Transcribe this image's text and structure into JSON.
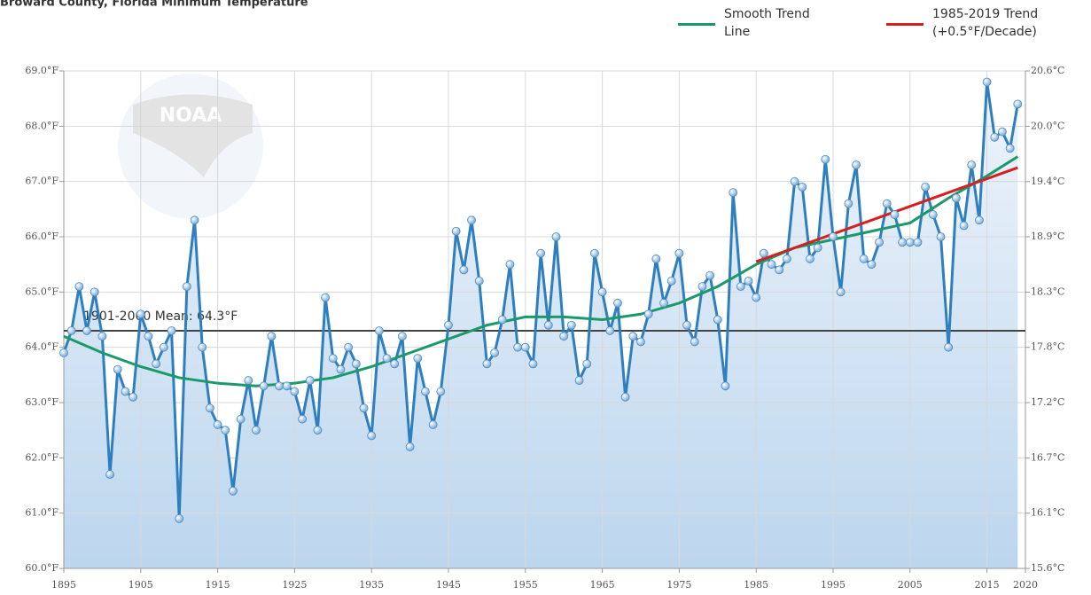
{
  "chart_data": {
    "type": "line",
    "title": "Broward County, Florida Minimum Temperature",
    "logo_text": "NOAA",
    "xlim": [
      1895,
      2020
    ],
    "xticks": [
      1895,
      1905,
      1915,
      1925,
      1935,
      1945,
      1955,
      1965,
      1975,
      1985,
      1995,
      2005,
      2015,
      2020
    ],
    "ylim": [
      60,
      69
    ],
    "yticks": [
      {
        "value": 60,
        "label": "60.0°F"
      },
      {
        "value": 61,
        "label": "61.0°F"
      },
      {
        "value": 62,
        "label": "62.0°F"
      },
      {
        "value": 63,
        "label": "63.0°F"
      },
      {
        "value": 64,
        "label": "64.0°F"
      },
      {
        "value": 65,
        "label": "65.0°F"
      },
      {
        "value": 66,
        "label": "66.0°F"
      },
      {
        "value": 67,
        "label": "67.0°F"
      },
      {
        "value": 68,
        "label": "68.0°F"
      },
      {
        "value": 69,
        "label": "69.0°F"
      }
    ],
    "y2lim": [
      15.556,
      20.556
    ],
    "y2ticks": [
      {
        "value": 15.556,
        "label": "15.6°C"
      },
      {
        "value": 16.111,
        "label": "16.1°C"
      },
      {
        "value": 16.667,
        "label": "16.7°C"
      },
      {
        "value": 17.222,
        "label": "17.2°C"
      },
      {
        "value": 17.778,
        "label": "17.8°C"
      },
      {
        "value": 18.333,
        "label": "18.3°C"
      },
      {
        "value": 18.889,
        "label": "18.9°C"
      },
      {
        "value": 19.444,
        "label": "19.4°C"
      },
      {
        "value": 20.0,
        "label": "20.0°C"
      },
      {
        "value": 20.556,
        "label": "20.6°C"
      }
    ],
    "grid": true,
    "color": "#2e7fc0",
    "x": [
      1895,
      1896,
      1897,
      1898,
      1899,
      1900,
      1901,
      1902,
      1903,
      1904,
      1905,
      1906,
      1907,
      1908,
      1909,
      1910,
      1911,
      1912,
      1913,
      1914,
      1915,
      1916,
      1917,
      1918,
      1919,
      1920,
      1921,
      1922,
      1923,
      1924,
      1925,
      1926,
      1927,
      1928,
      1929,
      1930,
      1931,
      1932,
      1933,
      1934,
      1935,
      1936,
      1937,
      1938,
      1939,
      1940,
      1941,
      1942,
      1943,
      1944,
      1945,
      1946,
      1947,
      1948,
      1949,
      1950,
      1951,
      1952,
      1953,
      1954,
      1955,
      1956,
      1957,
      1958,
      1959,
      1960,
      1961,
      1962,
      1963,
      1964,
      1965,
      1966,
      1967,
      1968,
      1969,
      1970,
      1971,
      1972,
      1973,
      1974,
      1975,
      1976,
      1977,
      1978,
      1979,
      1980,
      1981,
      1982,
      1983,
      1984,
      1985,
      1986,
      1987,
      1988,
      1989,
      1990,
      1991,
      1992,
      1993,
      1994,
      1995,
      1996,
      1997,
      1998,
      1999,
      2000,
      2001,
      2002,
      2003,
      2004,
      2005,
      2006,
      2007,
      2008,
      2009,
      2010,
      2011,
      2012,
      2013,
      2014,
      2015,
      2016,
      2017,
      2018,
      2019
    ],
    "values": [
      63.9,
      64.3,
      65.1,
      64.3,
      65.0,
      64.2,
      61.7,
      63.6,
      63.2,
      63.1,
      64.6,
      64.2,
      63.7,
      64.0,
      64.3,
      60.9,
      65.1,
      66.3,
      64.0,
      62.9,
      62.6,
      62.5,
      61.4,
      62.7,
      63.4,
      62.5,
      63.3,
      64.2,
      63.3,
      63.3,
      63.2,
      62.7,
      63.4,
      62.5,
      64.9,
      63.8,
      63.6,
      64.0,
      63.7,
      62.9,
      62.4,
      64.3,
      63.8,
      63.7,
      64.2,
      62.2,
      63.8,
      63.2,
      62.6,
      63.2,
      64.4,
      66.1,
      65.4,
      66.3,
      65.2,
      63.7,
      63.9,
      64.5,
      65.5,
      64.0,
      64.0,
      63.7,
      65.7,
      64.4,
      66.0,
      64.2,
      64.4,
      63.4,
      63.7,
      65.7,
      65.0,
      64.3,
      64.8,
      63.1,
      64.2,
      64.1,
      64.6,
      65.6,
      64.8,
      65.2,
      65.7,
      64.4,
      64.1,
      65.1,
      65.3,
      64.5,
      63.3,
      66.8,
      65.1,
      65.2,
      64.9,
      65.7,
      65.5,
      65.4,
      65.6,
      67.0,
      66.9,
      65.6,
      65.8,
      67.4,
      66.0,
      65.0,
      66.6,
      67.3,
      65.6,
      65.5,
      65.9,
      66.6,
      66.4,
      65.9,
      65.9,
      65.9,
      66.9,
      66.4,
      66.0,
      64.0,
      66.7,
      66.2,
      67.3,
      66.3,
      68.8,
      67.8,
      67.9,
      67.6,
      68.4
    ],
    "mean": {
      "value": 64.3,
      "label": "1901-2000 Mean: 64.3°F"
    },
    "trend_lines": [
      {
        "name": "Smooth Trend Line",
        "color": "#1a9a6a",
        "x": [
          1895,
          1900,
          1905,
          1910,
          1915,
          1920,
          1925,
          1930,
          1935,
          1940,
          1945,
          1950,
          1955,
          1960,
          1965,
          1970,
          1975,
          1980,
          1985,
          1990,
          1995,
          2000,
          2005,
          2010,
          2015,
          2019
        ],
        "values": [
          64.2,
          63.9,
          63.65,
          63.45,
          63.35,
          63.3,
          63.35,
          63.45,
          63.65,
          63.9,
          64.15,
          64.4,
          64.55,
          64.55,
          64.5,
          64.6,
          64.8,
          65.1,
          65.5,
          65.8,
          65.95,
          66.1,
          66.25,
          66.7,
          67.1,
          67.45
        ]
      },
      {
        "name": "1985-2019 Trend (+0.5°F/Decade)",
        "color": "#d62020",
        "x": [
          1985,
          2019
        ],
        "values": [
          65.55,
          67.25
        ]
      }
    ]
  }
}
